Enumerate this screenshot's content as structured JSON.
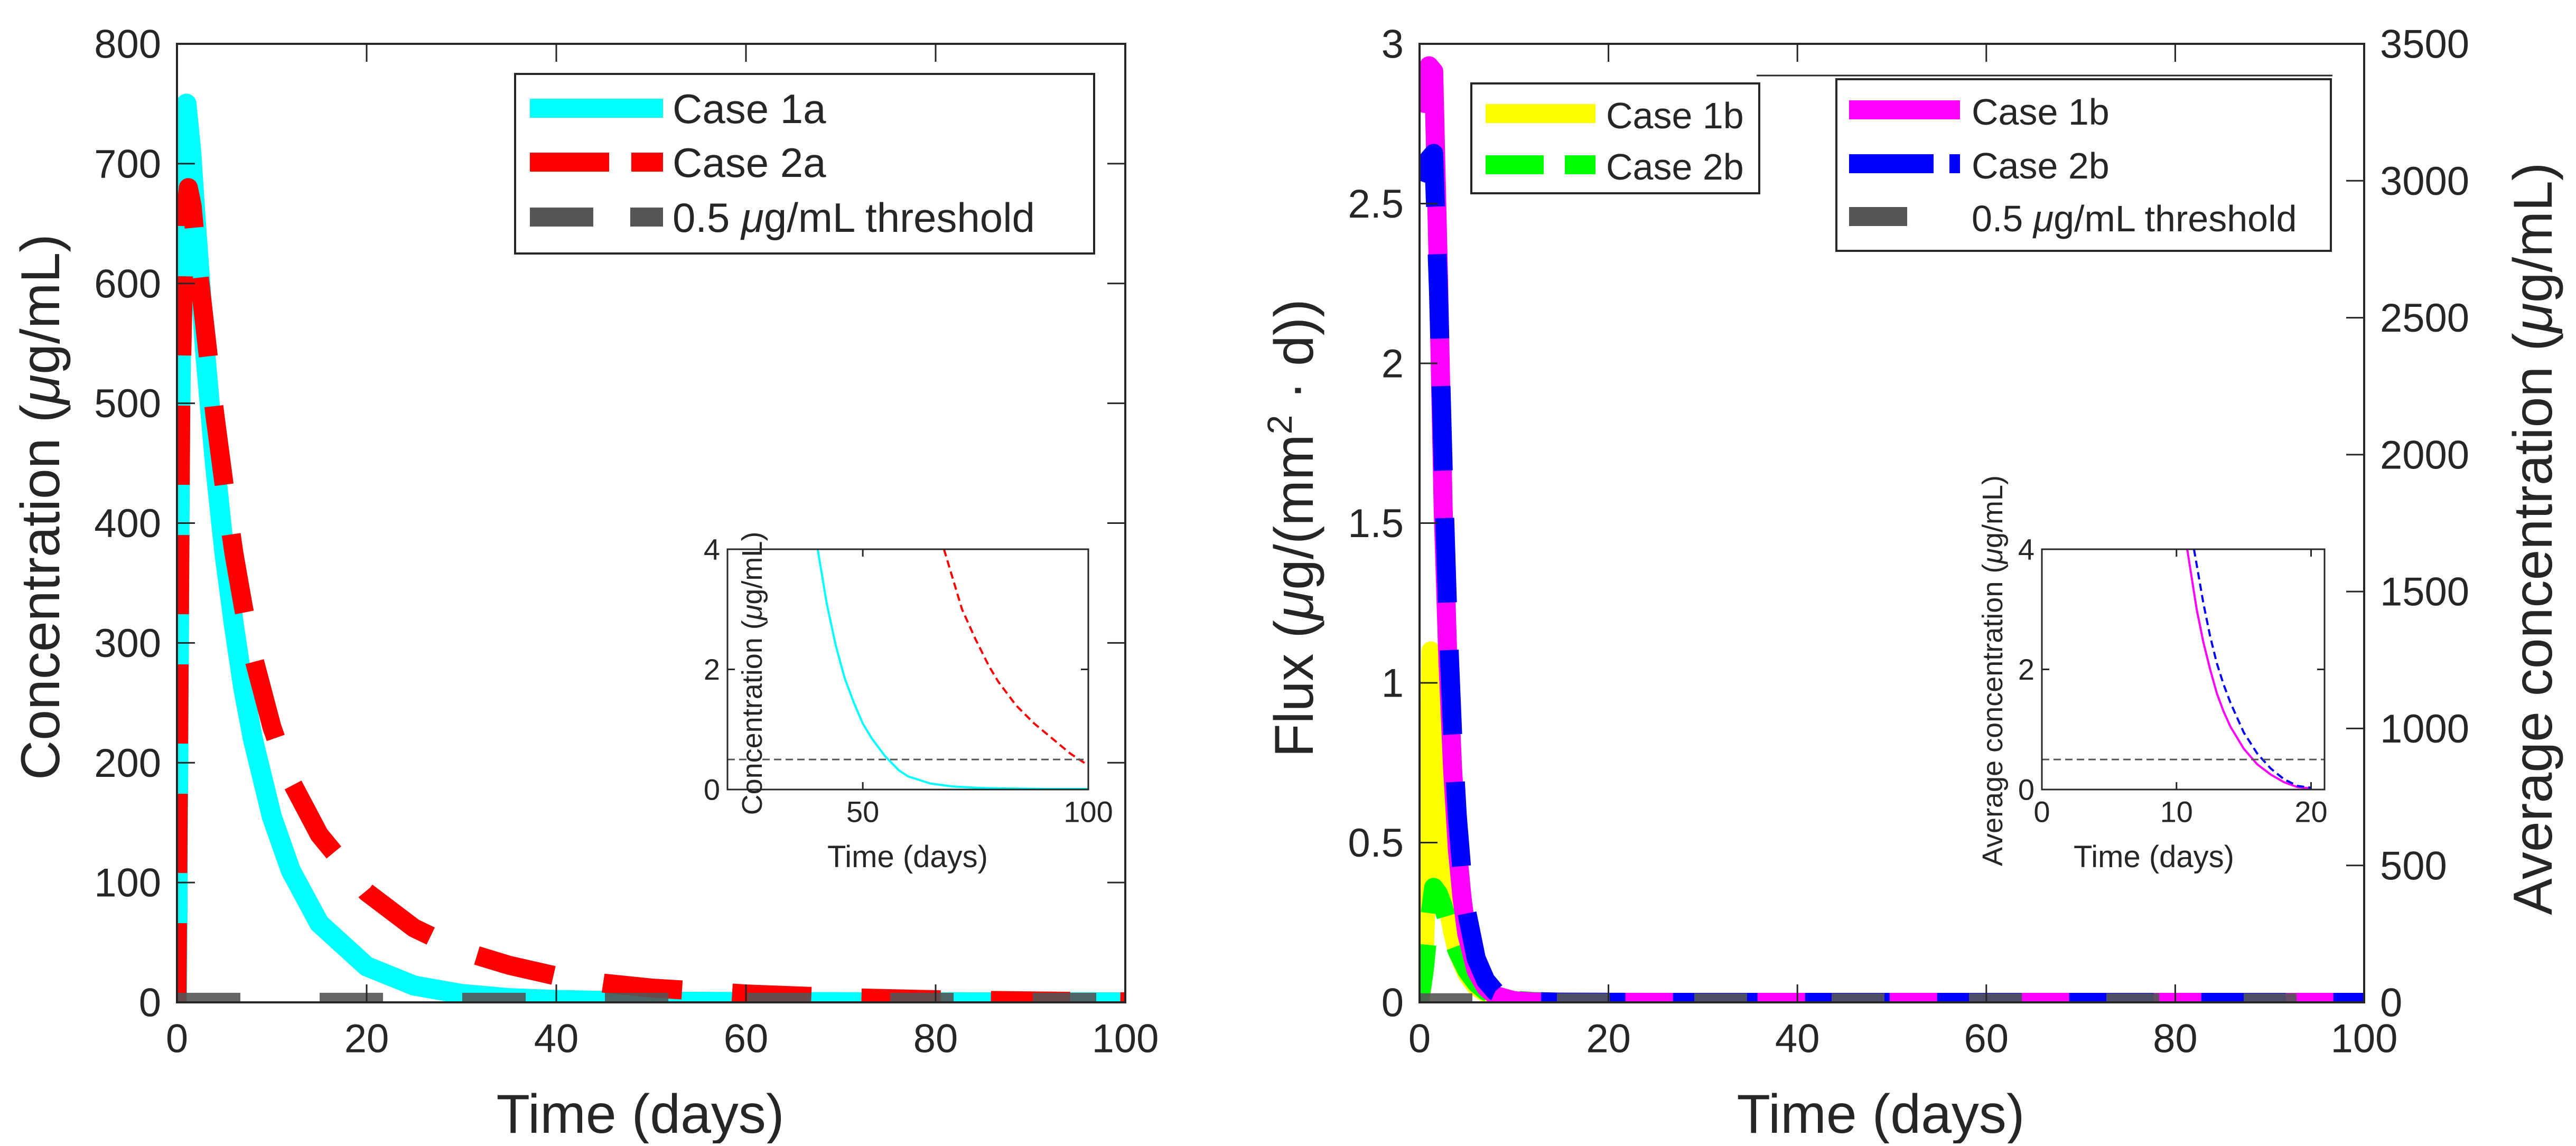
{
  "chart_data": [
    {
      "id": "left-main",
      "type": "line",
      "title": "",
      "xlabel": "Time (days)",
      "ylabel_parts": [
        "Concentration (",
        "μ",
        "g/mL)"
      ],
      "xlim": [
        0,
        100
      ],
      "ylim": [
        0,
        800
      ],
      "xticks": [
        0,
        20,
        40,
        60,
        80,
        100
      ],
      "yticks": [
        0,
        100,
        200,
        300,
        400,
        500,
        600,
        700,
        800
      ],
      "grid": false,
      "legend_position": "top-right",
      "series": [
        {
          "name": "Case 1a",
          "color": "#00ffff",
          "style": "solid",
          "x": [
            0,
            0.3,
            0.6,
            1,
            1.5,
            2,
            3,
            4,
            5,
            6,
            7,
            8,
            10,
            12,
            15,
            20,
            25,
            30,
            35,
            40,
            45,
            50,
            60,
            70,
            80,
            90,
            100
          ],
          "y": [
            0,
            450,
            700,
            750,
            710,
            650,
            540,
            450,
            375,
            315,
            262,
            220,
            155,
            110,
            66,
            30,
            14,
            7,
            3.5,
            2,
            1.2,
            0.6,
            0.2,
            0.1,
            0.05,
            0.02,
            0.01
          ]
        },
        {
          "name": "Case 2a",
          "color": "#ff0000",
          "style": "dashed",
          "x": [
            0,
            0.4,
            0.8,
            1.2,
            1.6,
            2,
            3,
            4,
            5,
            6,
            7,
            8,
            10,
            12,
            15,
            20,
            25,
            30,
            35,
            40,
            45,
            50,
            60,
            70,
            80,
            90,
            100
          ],
          "y": [
            0,
            500,
            650,
            680,
            665,
            630,
            560,
            490,
            430,
            375,
            330,
            290,
            230,
            185,
            140,
            92,
            62,
            43,
            31,
            22,
            16,
            12,
            7,
            4,
            2.2,
            1.2,
            0.5
          ]
        },
        {
          "name": "0.5 μg/mL threshold",
          "color": "#555555",
          "style": "dashed",
          "x": [
            0,
            100
          ],
          "y": [
            0.5,
            0.5
          ]
        }
      ],
      "legend": [
        {
          "label": "Case 1a",
          "color": "#00ffff"
        },
        {
          "label": "Case 2a",
          "color": "#ff0000"
        },
        {
          "pre": "0.5 ",
          "mu": "μ",
          "post": "g/mL threshold",
          "color": "#555555"
        }
      ]
    },
    {
      "id": "left-inset",
      "type": "line",
      "xlabel": "Time (days)",
      "ylabel_parts": [
        "Concentration (",
        "μ",
        "g/mL)"
      ],
      "xlim": [
        20,
        100
      ],
      "ylim": [
        0,
        4
      ],
      "xticks": [
        50,
        100
      ],
      "yticks": [
        0,
        2,
        4
      ],
      "grid": false,
      "series": [
        {
          "name": "Case 1a",
          "color": "#00ffff",
          "style": "solid",
          "x": [
            40,
            42,
            44,
            46,
            48,
            50,
            52,
            55,
            58,
            60,
            65,
            70,
            75,
            80,
            90,
            100
          ],
          "y": [
            4,
            3.1,
            2.4,
            1.85,
            1.45,
            1.1,
            0.85,
            0.55,
            0.32,
            0.22,
            0.1,
            0.05,
            0.03,
            0.02,
            0.01,
            0.01
          ]
        },
        {
          "name": "Case 2a",
          "color": "#ff0000",
          "style": "dashed",
          "x": [
            68,
            70,
            72,
            75,
            78,
            80,
            84,
            88,
            92,
            96,
            100
          ],
          "y": [
            4,
            3.5,
            3.0,
            2.5,
            2.05,
            1.8,
            1.4,
            1.1,
            0.85,
            0.6,
            0.4
          ]
        },
        {
          "name": "threshold",
          "color": "#555555",
          "style": "dashed",
          "x": [
            20,
            100
          ],
          "y": [
            0.5,
            0.5
          ]
        }
      ]
    },
    {
      "id": "right-main",
      "type": "line",
      "xlabel": "Time (days)",
      "ylabel_parts": [
        "Flux (",
        "μ",
        "g/(mm",
        "2",
        " · d))"
      ],
      "y2label_parts": [
        "Average concentration (",
        "μ",
        "g/mL)"
      ],
      "xlim": [
        0,
        100
      ],
      "ylim": [
        0,
        3
      ],
      "y2lim": [
        0,
        3500
      ],
      "xticks": [
        0,
        20,
        40,
        60,
        80,
        100
      ],
      "yticks": [
        0,
        0.5,
        1,
        1.5,
        2,
        2.5,
        3
      ],
      "y2ticks": [
        0,
        500,
        1000,
        1500,
        2000,
        2500,
        3000,
        3500
      ],
      "grid": false,
      "series": [
        {
          "name": "Case 1b",
          "axis": "left",
          "color": "#ffff00",
          "style": "solid",
          "x": [
            0,
            0.5,
            0.9,
            1.2,
            1.6,
            2,
            2.5,
            3,
            3.5,
            4,
            5,
            6,
            7,
            8,
            10,
            12,
            15,
            20,
            100
          ],
          "y": [
            0,
            0.15,
            0.5,
            1.1,
            0.8,
            0.55,
            0.4,
            0.3,
            0.22,
            0.16,
            0.09,
            0.05,
            0.03,
            0.015,
            0.005,
            0.002,
            0,
            0,
            0
          ]
        },
        {
          "name": "Case 2b",
          "axis": "left",
          "color": "#00ff00",
          "style": "dashed",
          "x": [
            0,
            0.5,
            1,
            1.5,
            2,
            2.5,
            3,
            3.5,
            4,
            5,
            6,
            7,
            8,
            10,
            12,
            15,
            20,
            100
          ],
          "y": [
            0,
            0.1,
            0.25,
            0.36,
            0.34,
            0.3,
            0.25,
            0.2,
            0.16,
            0.1,
            0.06,
            0.035,
            0.02,
            0.007,
            0.003,
            0,
            0,
            0
          ]
        },
        {
          "name": "Case 1b",
          "axis": "right",
          "color": "#ff00ff",
          "style": "solid",
          "x": [
            0,
            0.5,
            1,
            1.5,
            2,
            2.5,
            3,
            3.5,
            4,
            4.5,
            5,
            6,
            7,
            8,
            10,
            12,
            15,
            20,
            25,
            30,
            40,
            50,
            60,
            80,
            100
          ],
          "y": [
            3250,
            3380,
            3420,
            3400,
            2650,
            1800,
            1250,
            850,
            560,
            380,
            250,
            115,
            55,
            25,
            6,
            2,
            0.5,
            0.1,
            0,
            0,
            0,
            0,
            0,
            0,
            0
          ]
        },
        {
          "name": "Case 2b",
          "axis": "right",
          "color": "#0000ff",
          "style": "dashed",
          "x": [
            0,
            0.5,
            1,
            1.5,
            2,
            2.5,
            3,
            3.5,
            4,
            4.5,
            5,
            6,
            7,
            8,
            10,
            12,
            15,
            20,
            25,
            30,
            40,
            50,
            60,
            80,
            100
          ],
          "y": [
            3000,
            3050,
            3080,
            3100,
            2600,
            1950,
            1400,
            980,
            680,
            470,
            330,
            160,
            80,
            40,
            10,
            3,
            0.8,
            0.15,
            0,
            0,
            0,
            0,
            0,
            0,
            0
          ]
        },
        {
          "name": "0.5 μg/mL threshold",
          "axis": "right",
          "color": "#555555",
          "style": "dashed",
          "x": [
            0,
            100
          ],
          "y": [
            0.5,
            0.5
          ]
        }
      ],
      "legend_left": [
        {
          "label": "Case 1b",
          "color": "#ffff00"
        },
        {
          "label": "Case 2b",
          "color": "#00ff00"
        }
      ],
      "legend_right": [
        {
          "label": "Case 1b",
          "color": "#ff00ff"
        },
        {
          "label": "Case 2b",
          "color": "#0000ff"
        },
        {
          "pre": "0.5 ",
          "mu": "μ",
          "post": "g/mL threshold",
          "color": "#555555"
        }
      ]
    },
    {
      "id": "right-inset",
      "type": "line",
      "xlabel": "Time (days)",
      "ylabel_parts": [
        "Average concentration (",
        "μ",
        "g/mL)"
      ],
      "xlim": [
        0,
        21
      ],
      "ylim": [
        0,
        4
      ],
      "xticks": [
        0,
        10,
        20
      ],
      "yticks": [
        0,
        2,
        4
      ],
      "grid": false,
      "series": [
        {
          "name": "Case 1b",
          "color": "#ff00ff",
          "style": "solid",
          "x": [
            10.8,
            11.5,
            12,
            12.5,
            13,
            13.5,
            14,
            15,
            16,
            17,
            18,
            19,
            20
          ],
          "y": [
            4,
            3.0,
            2.45,
            2.0,
            1.6,
            1.3,
            1.05,
            0.68,
            0.42,
            0.25,
            0.12,
            0.04,
            0.02
          ]
        },
        {
          "name": "Case 2b",
          "color": "#0000ff",
          "style": "dashed",
          "x": [
            11.3,
            12,
            12.5,
            13,
            13.5,
            14,
            15,
            16,
            17,
            18,
            19,
            20
          ],
          "y": [
            4,
            3.1,
            2.55,
            2.1,
            1.75,
            1.45,
            0.95,
            0.6,
            0.35,
            0.17,
            0.06,
            0.03
          ]
        },
        {
          "name": "threshold",
          "color": "#555555",
          "style": "dashed",
          "x": [
            0,
            21
          ],
          "y": [
            0.5,
            0.5
          ]
        }
      ]
    }
  ]
}
